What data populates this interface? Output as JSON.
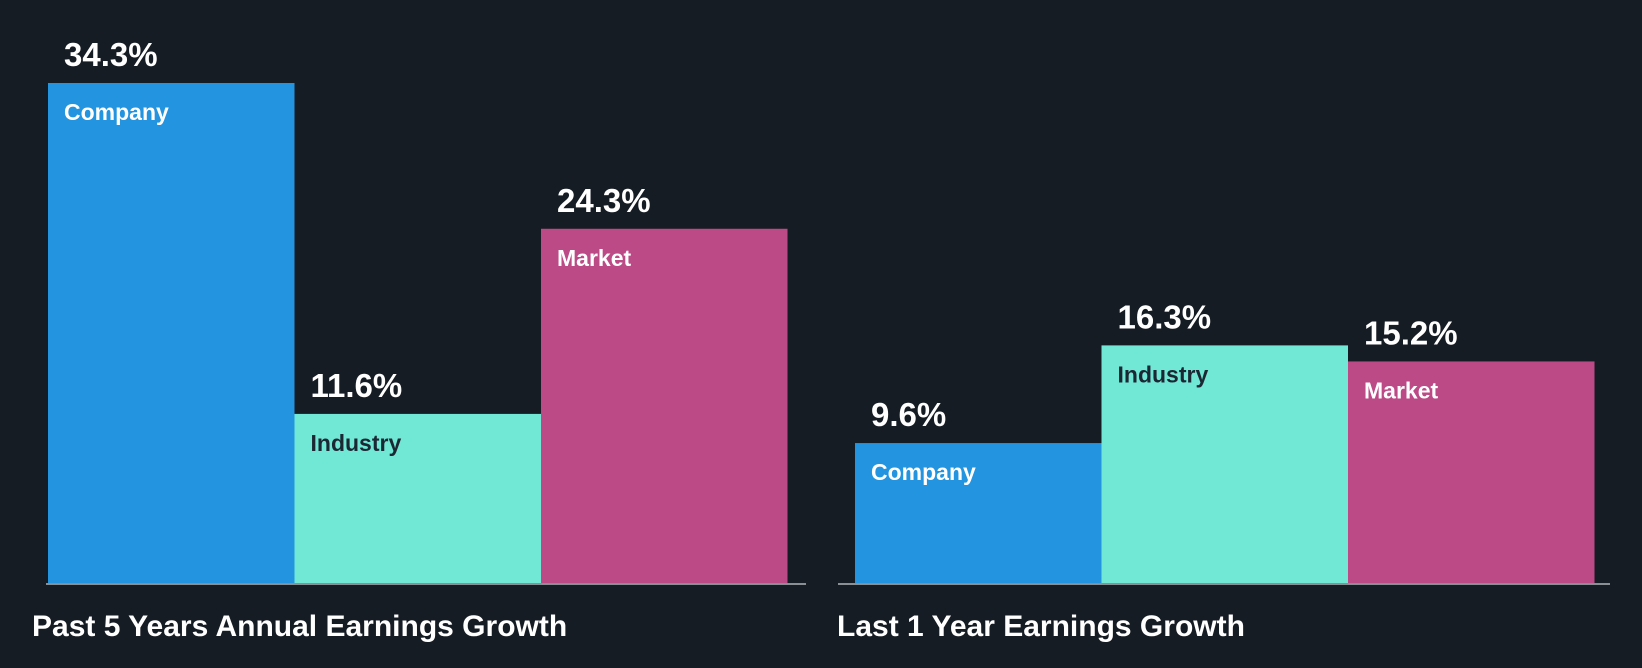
{
  "colors": {
    "background": "#161c24",
    "company": "#2394df",
    "industry": "#71e7d6",
    "market": "#bb4a86",
    "baseline": "#8a8f96",
    "label_on_dark": "#ffffff",
    "label_on_light": "#1b2733"
  },
  "chart_data": [
    {
      "type": "bar",
      "title": "Past 5 Years Annual Earnings Growth",
      "categories": [
        "Company",
        "Industry",
        "Market"
      ],
      "values": [
        34.3,
        11.6,
        24.3
      ],
      "value_labels": [
        "34.3%",
        "11.6%",
        "24.3%"
      ],
      "unit": "%",
      "ylim": [
        0,
        34.3
      ],
      "grid": false,
      "legend": "none"
    },
    {
      "type": "bar",
      "title": "Last 1 Year Earnings Growth",
      "categories": [
        "Company",
        "Industry",
        "Market"
      ],
      "values": [
        9.6,
        16.3,
        15.2
      ],
      "value_labels": [
        "9.6%",
        "16.3%",
        "15.2%"
      ],
      "unit": "%",
      "ylim": [
        0,
        34.3
      ],
      "grid": false,
      "legend": "none"
    }
  ]
}
